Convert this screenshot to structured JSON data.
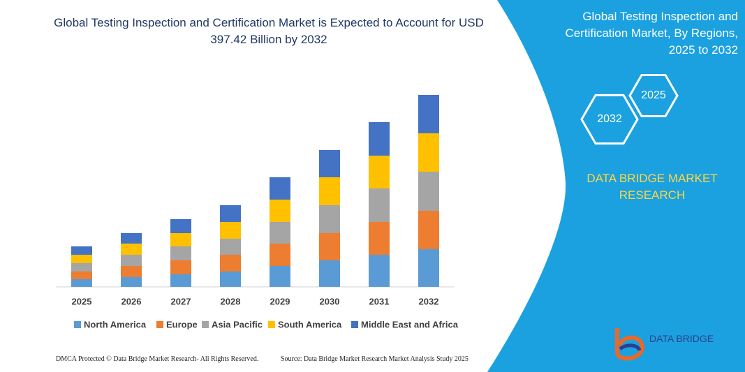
{
  "chart_data": {
    "type": "stacked_bar",
    "title": "Global Testing Inspection and Certification Market is Expected to Account for USD 397.42 Billion by 2032",
    "categories": [
      "2025",
      "2026",
      "2027",
      "2028",
      "2029",
      "2030",
      "2031",
      "2032"
    ],
    "series": [
      {
        "name": "North America",
        "color": "#5b9bd5",
        "values": [
          11,
          14,
          18,
          22,
          30,
          38,
          46,
          54
        ]
      },
      {
        "name": "Europe",
        "color": "#ed7d31",
        "values": [
          11,
          16,
          20,
          24,
          32,
          39,
          47,
          55
        ]
      },
      {
        "name": "Asia Pacific",
        "color": "#a5a5a5",
        "values": [
          12,
          16,
          20,
          23,
          31,
          40,
          48,
          56
        ]
      },
      {
        "name": "South America",
        "color": "#ffc000",
        "values": [
          12,
          16,
          19,
          24,
          32,
          40,
          47,
          55
        ]
      },
      {
        "name": "Middle East and Africa",
        "color": "#4472c4",
        "values": [
          12,
          15,
          20,
          24,
          32,
          39,
          48,
          55
        ]
      }
    ],
    "ylim": [
      0,
      300
    ],
    "legend": "bottom"
  },
  "panel": {
    "title": "Global Testing Inspection and Certification Market, By Regions, 2025 to 2032",
    "hexagons": [
      "2025",
      "2032"
    ],
    "brand": "DATA BRIDGE MARKET RESEARCH"
  },
  "logo": "DATA BRIDGE",
  "footer": {
    "left": "DMCA Protected © Data Bridge Market Research- All Rights Reserved.",
    "right": "Source: Data Bridge Market Research Market Analysis Study 2025"
  }
}
